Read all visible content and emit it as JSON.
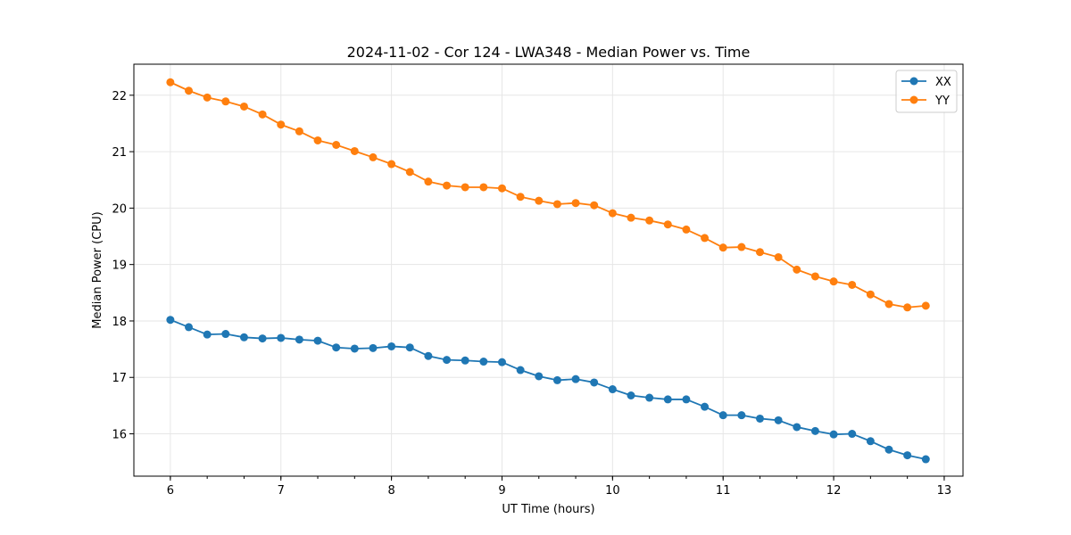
{
  "chart_data": {
    "type": "line",
    "title": "2024-11-02 - Cor 124 - LWA348 - Median Power vs. Time",
    "xlabel": "UT Time (hours)",
    "ylabel": "Median Power (CPU)",
    "xlim": [
      5.67,
      13.17
    ],
    "ylim": [
      15.25,
      22.55
    ],
    "xticks": [
      6,
      7,
      8,
      9,
      10,
      11,
      12,
      13
    ],
    "yticks": [
      16,
      17,
      18,
      19,
      20,
      21,
      22
    ],
    "x_minor_step": 0.333333,
    "grid": true,
    "legend_position": "top-right",
    "x": [
      6.0,
      6.1667,
      6.3333,
      6.5,
      6.6667,
      6.8333,
      7.0,
      7.1667,
      7.3333,
      7.5,
      7.6667,
      7.8333,
      8.0,
      8.1667,
      8.3333,
      8.5,
      8.6667,
      8.8333,
      9.0,
      9.1667,
      9.3333,
      9.5,
      9.6667,
      9.8333,
      10.0,
      10.1667,
      10.3333,
      10.5,
      10.6667,
      10.8333,
      11.0,
      11.1667,
      11.3333,
      11.5,
      11.6667,
      11.8333,
      12.0,
      12.1667,
      12.3333,
      12.5,
      12.6667,
      12.8333
    ],
    "series": [
      {
        "name": "XX",
        "color": "#1f77b4",
        "values": [
          18.02,
          17.89,
          17.76,
          17.77,
          17.71,
          17.69,
          17.7,
          17.67,
          17.65,
          17.53,
          17.51,
          17.52,
          17.55,
          17.53,
          17.38,
          17.31,
          17.3,
          17.28,
          17.27,
          17.13,
          17.02,
          16.95,
          16.97,
          16.91,
          16.79,
          16.68,
          16.64,
          16.61,
          16.61,
          16.48,
          16.33,
          16.33,
          16.27,
          16.24,
          16.12,
          16.05,
          15.99,
          16.0,
          15.87,
          15.72,
          15.62,
          15.55
        ]
      },
      {
        "name": "YY",
        "color": "#ff7f0e",
        "values": [
          22.23,
          22.08,
          21.96,
          21.89,
          21.8,
          21.66,
          21.48,
          21.36,
          21.2,
          21.12,
          21.01,
          20.9,
          20.78,
          20.64,
          20.47,
          20.4,
          20.37,
          20.37,
          20.35,
          20.2,
          20.13,
          20.07,
          20.09,
          20.05,
          19.91,
          19.83,
          19.78,
          19.71,
          19.62,
          19.47,
          19.3,
          19.31,
          19.22,
          19.13,
          18.91,
          18.79,
          18.7,
          18.64,
          18.47,
          18.3,
          18.24,
          18.27
        ]
      }
    ]
  }
}
